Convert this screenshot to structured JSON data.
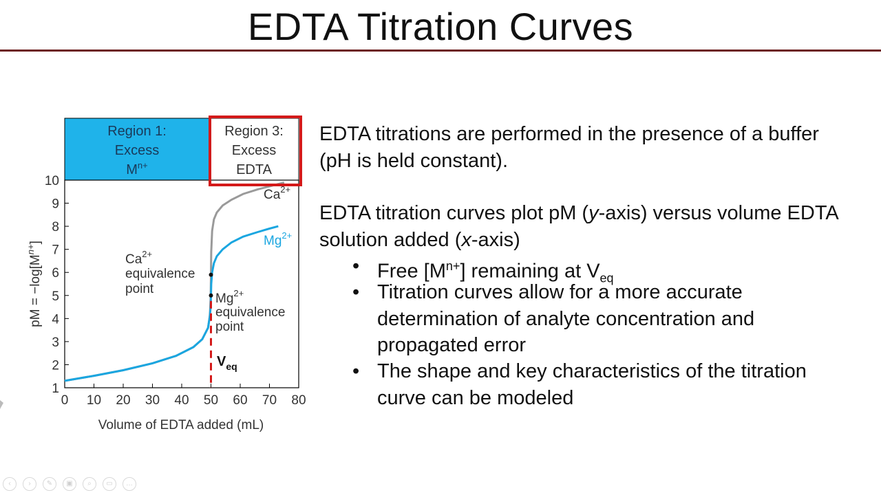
{
  "slide": {
    "title": "EDTA Titration Curves",
    "para1": "EDTA titrations are performed in the presence of a buffer (pH is held constant).",
    "para2_a": "EDTA titration curves plot pM (",
    "para2_y": "y",
    "para2_b": "-axis) versus volume EDTA solution added (",
    "para2_x": "x",
    "para2_c": "-axis)",
    "bullet_char": "•",
    "bullet1_a": "Free [M",
    "bullet1_sup": "n+",
    "bullet1_b": "] remaining at V",
    "bullet1_sub": "eq",
    "bullet2": "Titration curves allow for a more accurate determination of analyte concentration and propagated error",
    "bullet3": "The shape and key characteristics of the titration curve can be modeled"
  },
  "toolbar": {
    "icons": [
      "prev-icon",
      "next-icon",
      "pen-icon",
      "slides-icon",
      "zoom-icon",
      "subtitles-icon",
      "more-icon"
    ],
    "glyphs": [
      "‹",
      "›",
      "✎",
      "▣",
      "⌕",
      "▭",
      "…"
    ]
  },
  "colors": {
    "title_rule": "#6b1a1a",
    "region_fill": "#1fb3ea",
    "mg_curve": "#1aa6e0",
    "ca_curve": "#9a9a9a",
    "veq_line": "#d41a1a",
    "highlight_box": "#d41a1a"
  },
  "chart_data": {
    "type": "line",
    "xlabel": "Volume of EDTA added  (mL)",
    "ylabel_a": "pM = −log[M",
    "ylabel_sup": "n+",
    "ylabel_b": "]",
    "xlim": [
      0,
      80
    ],
    "ylim": [
      1,
      10
    ],
    "xticks": [
      0,
      10,
      20,
      30,
      40,
      50,
      60,
      70,
      80
    ],
    "yticks": [
      1,
      2,
      3,
      4,
      5,
      6,
      7,
      8,
      9,
      10
    ],
    "regions": [
      {
        "line1": "Region 1:",
        "line2": "Excess",
        "line3_a": "M",
        "line3_sup": "n+",
        "x_range": [
          0,
          50
        ]
      },
      {
        "line1": "Region 3:",
        "line2": "Excess",
        "line3_a": "EDTA",
        "line3_sup": "",
        "x_range": [
          50,
          80
        ]
      }
    ],
    "series": [
      {
        "name": "Ca",
        "sup": "2+",
        "x": [
          0,
          10,
          20,
          30,
          38,
          44,
          47,
          49,
          49.6,
          49.9,
          50,
          50.1,
          50.4,
          51,
          52,
          54,
          57,
          61,
          66,
          70,
          73,
          75
        ],
        "y": [
          1.3,
          1.52,
          1.76,
          2.06,
          2.38,
          2.76,
          3.1,
          3.6,
          4.1,
          4.9,
          5.9,
          6.9,
          7.8,
          8.3,
          8.6,
          8.9,
          9.15,
          9.4,
          9.6,
          9.73,
          9.83,
          9.9
        ]
      },
      {
        "name": "Mg",
        "sup": "2+",
        "x": [
          0,
          10,
          20,
          30,
          38,
          44,
          47,
          49,
          49.6,
          49.9,
          50,
          50.1,
          50.4,
          51,
          52,
          54,
          57,
          61,
          66,
          70,
          73
        ],
        "y": [
          1.3,
          1.52,
          1.76,
          2.06,
          2.38,
          2.76,
          3.1,
          3.6,
          4.1,
          4.5,
          5.0,
          5.5,
          6.0,
          6.4,
          6.7,
          7.0,
          7.3,
          7.55,
          7.75,
          7.9,
          8.0
        ]
      }
    ],
    "annotations": {
      "ca_eq_a": "Ca",
      "ca_eq_sup": "2+",
      "ca_eq_b": "equivalence",
      "ca_eq_c": "point",
      "ca_eq_point": {
        "x": 50,
        "y": 5.9
      },
      "mg_eq_a": "Mg",
      "mg_eq_sup": "2+",
      "mg_eq_b": "equivalence",
      "mg_eq_c": "point",
      "mg_eq_point": {
        "x": 50,
        "y": 5.0
      },
      "veq_a": "V",
      "veq_sub": "eq",
      "veq_x": 50
    }
  }
}
